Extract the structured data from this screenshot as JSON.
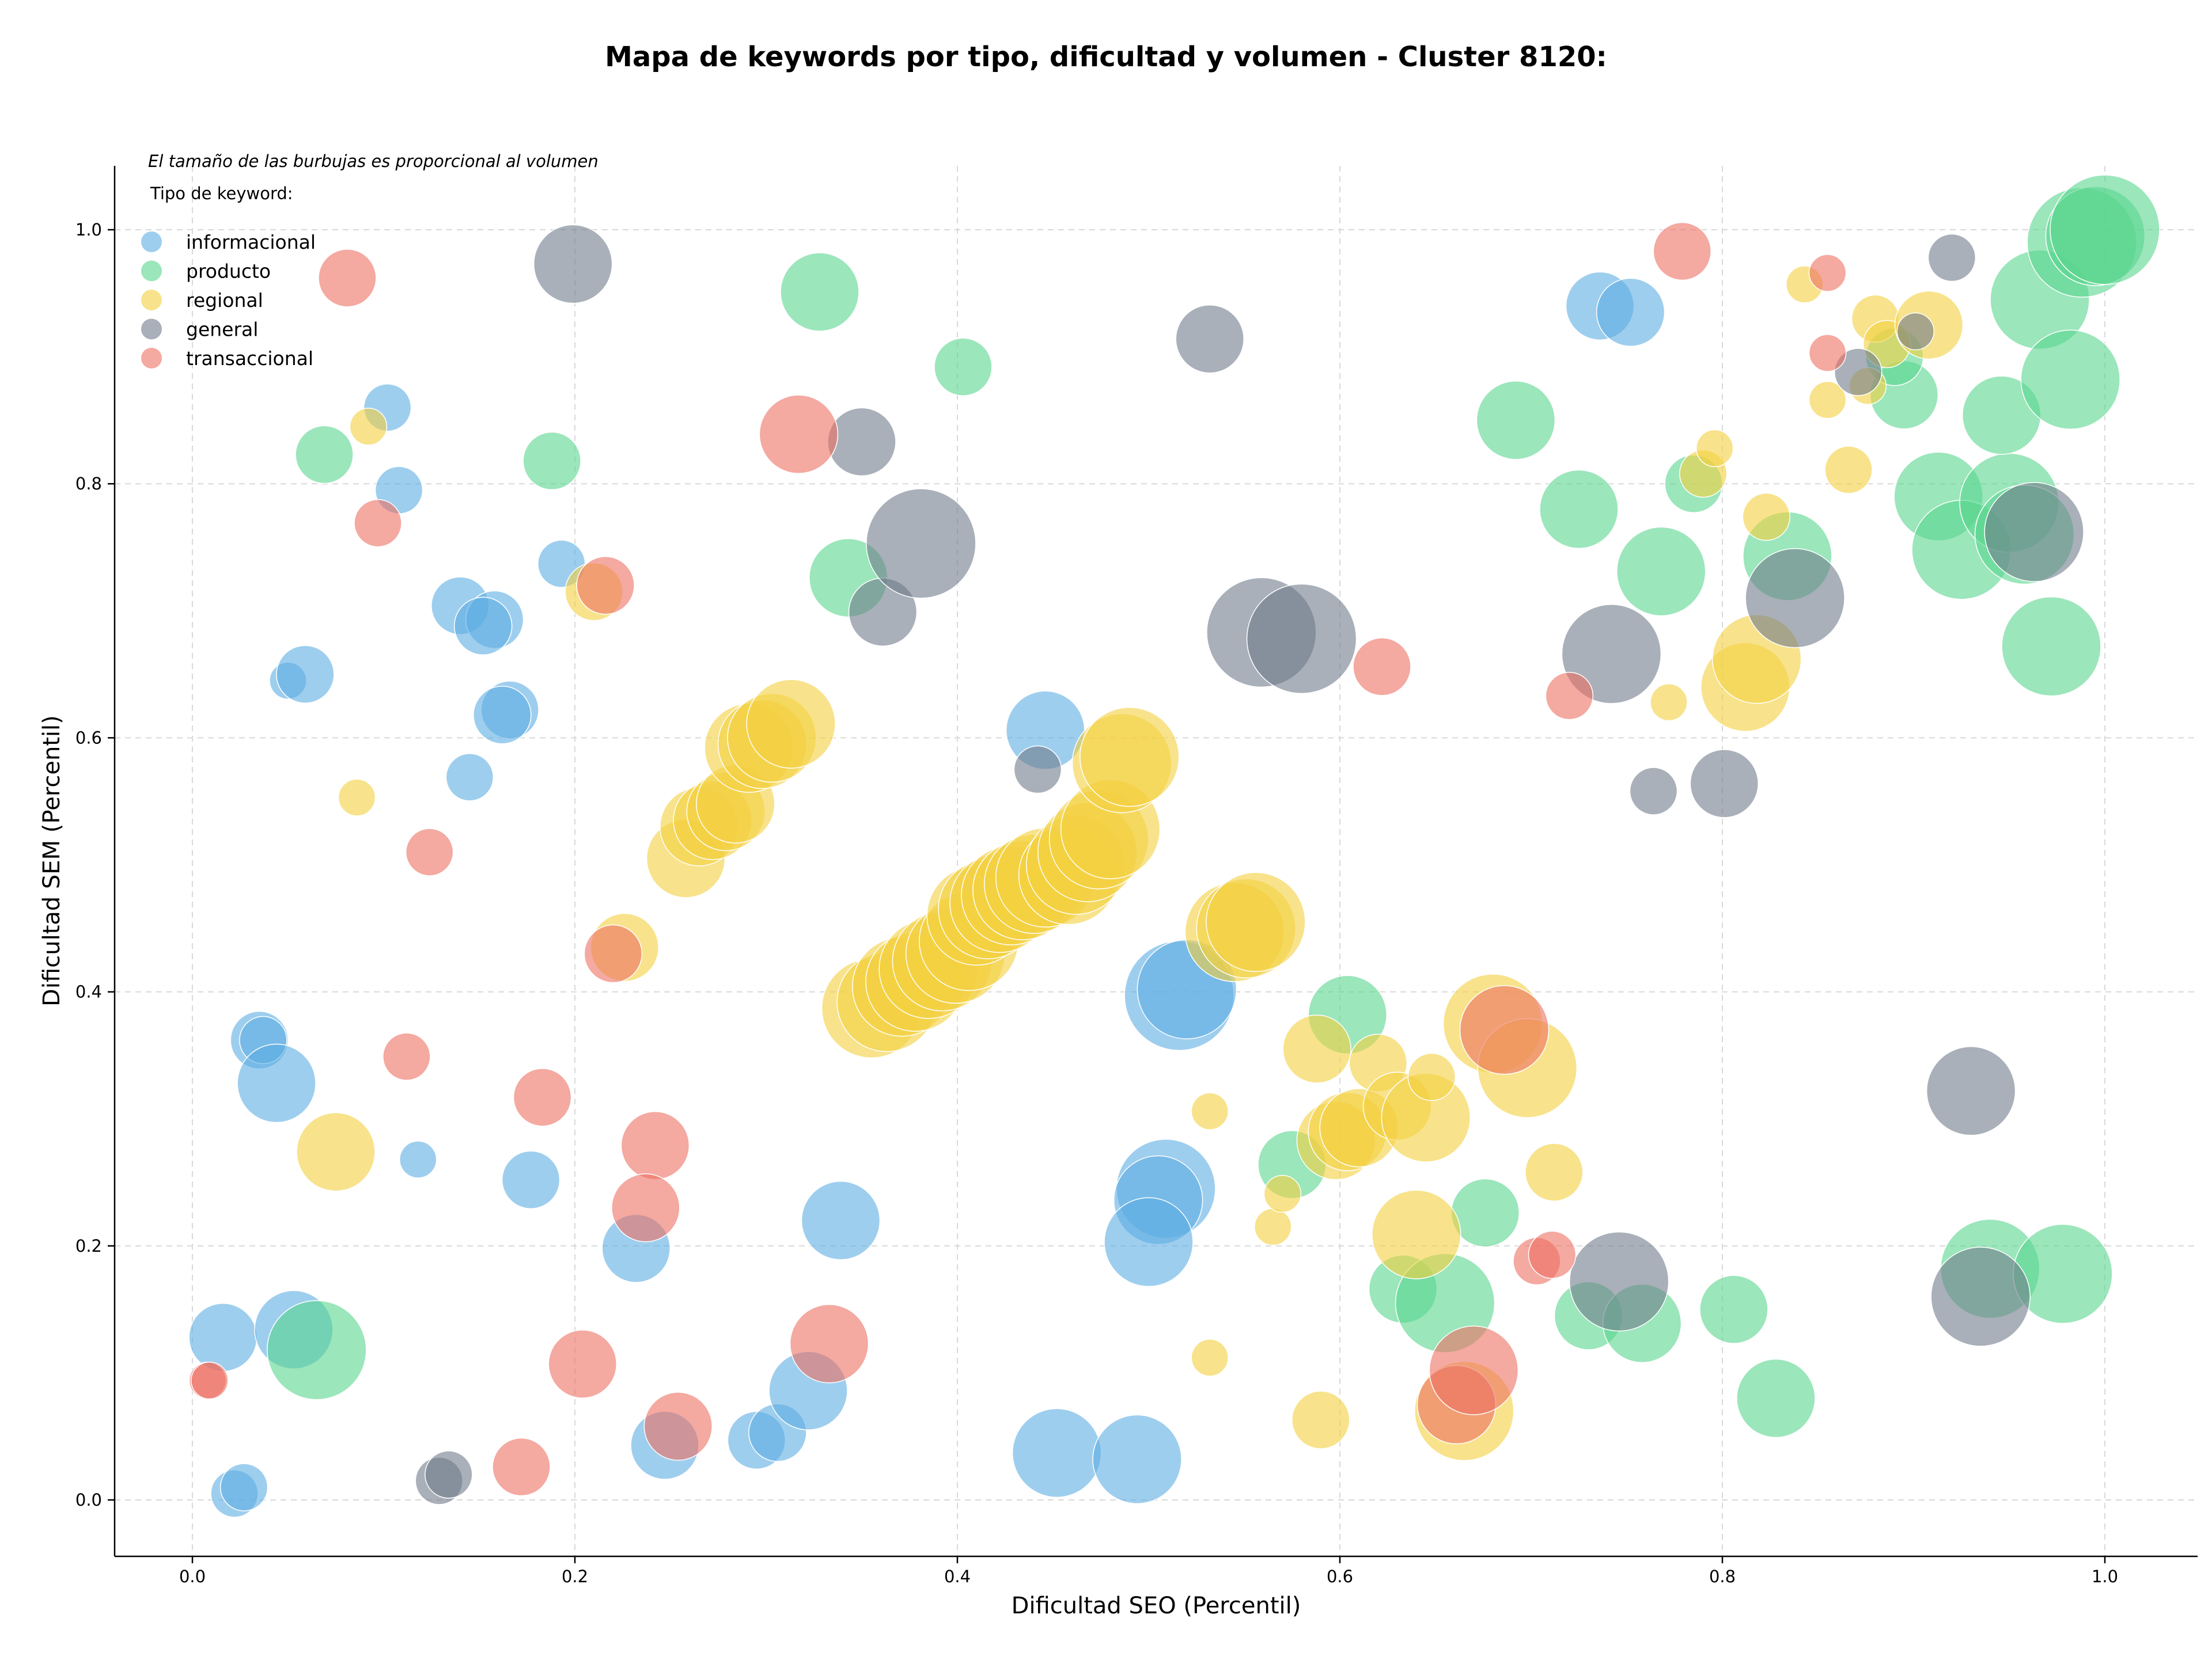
{
  "chart_data": {
    "type": "scatter",
    "title": "Mapa de keywords por tipo, dificultad y volumen - Cluster 8120:",
    "xlabel": "Dificultad SEO (Percentil)",
    "ylabel": "Dificultad SEM (Percentil)",
    "xlim": [
      -0.04,
      1.05
    ],
    "ylim": [
      -0.045,
      1.05
    ],
    "xticks": [
      "0.0",
      "0.2",
      "0.4",
      "0.6",
      "0.8",
      "1.0"
    ],
    "yticks": [
      "0.0",
      "0.2",
      "0.4",
      "0.6",
      "0.8",
      "1.0"
    ],
    "grid": true,
    "note": "El tamaño de las burbujas es proporcional al volumen",
    "legend": {
      "title": "Tipo de keyword:",
      "placement": "top-left",
      "entries": [
        "informacional",
        "producto",
        "regional",
        "general",
        "transaccional"
      ]
    },
    "series": [
      {
        "name": "informacional",
        "color": "#5DADE2",
        "points": [
          [
            0.102,
            0.86,
            3
          ],
          [
            0.108,
            0.795,
            3
          ],
          [
            0.193,
            0.737,
            3
          ],
          [
            0.14,
            0.704,
            4
          ],
          [
            0.158,
            0.693,
            4
          ],
          [
            0.152,
            0.688,
            4
          ],
          [
            0.05,
            0.645,
            2
          ],
          [
            0.059,
            0.65,
            4
          ],
          [
            0.166,
            0.622,
            4
          ],
          [
            0.162,
            0.618,
            4
          ],
          [
            0.145,
            0.569,
            3
          ],
          [
            0.446,
            0.606,
            6
          ],
          [
            0.736,
            0.94,
            5
          ],
          [
            0.752,
            0.935,
            5
          ],
          [
            0.035,
            0.362,
            4
          ],
          [
            0.037,
            0.362,
            3
          ],
          [
            0.044,
            0.328,
            6
          ],
          [
            0.118,
            0.268,
            2
          ],
          [
            0.177,
            0.252,
            4
          ],
          [
            0.232,
            0.198,
            5
          ],
          [
            0.339,
            0.22,
            6
          ],
          [
            0.516,
            0.397,
            9
          ],
          [
            0.52,
            0.402,
            8
          ],
          [
            0.509,
            0.245,
            8
          ],
          [
            0.505,
            0.236,
            7
          ],
          [
            0.5,
            0.203,
            7
          ],
          [
            0.016,
            0.128,
            5
          ],
          [
            0.053,
            0.134,
            6
          ],
          [
            0.022,
            0.005,
            3
          ],
          [
            0.027,
            0.01,
            3
          ],
          [
            0.247,
            0.043,
            5
          ],
          [
            0.295,
            0.047,
            4
          ],
          [
            0.306,
            0.053,
            4
          ],
          [
            0.322,
            0.086,
            6
          ],
          [
            0.452,
            0.037,
            7
          ],
          [
            0.494,
            0.032,
            7
          ]
        ]
      },
      {
        "name": "producto",
        "color": "#58D68D",
        "points": [
          [
            0.069,
            0.823,
            4
          ],
          [
            0.188,
            0.818,
            4
          ],
          [
            0.328,
            0.951,
            6
          ],
          [
            0.403,
            0.892,
            4
          ],
          [
            0.343,
            0.726,
            6
          ],
          [
            0.692,
            0.85,
            6
          ],
          [
            0.725,
            0.78,
            6
          ],
          [
            0.768,
            0.731,
            7
          ],
          [
            0.785,
            0.8,
            4
          ],
          [
            0.834,
            0.743,
            7
          ],
          [
            0.895,
            0.87,
            5
          ],
          [
            0.89,
            0.9,
            4
          ],
          [
            0.913,
            0.79,
            7
          ],
          [
            0.925,
            0.748,
            8
          ],
          [
            0.95,
            0.785,
            8
          ],
          [
            0.958,
            0.76,
            8
          ],
          [
            0.946,
            0.854,
            6
          ],
          [
            0.966,
            0.945,
            8
          ],
          [
            0.982,
            0.882,
            8
          ],
          [
            0.972,
            0.672,
            8
          ],
          [
            0.988,
            0.99,
            9
          ],
          [
            0.995,
            0.995,
            8
          ],
          [
            1.0,
            1.0,
            9
          ],
          [
            0.604,
            0.382,
            6
          ],
          [
            0.575,
            0.264,
            5
          ],
          [
            0.676,
            0.226,
            5
          ],
          [
            0.633,
            0.166,
            5
          ],
          [
            0.655,
            0.155,
            8
          ],
          [
            0.73,
            0.145,
            5
          ],
          [
            0.758,
            0.139,
            6
          ],
          [
            0.806,
            0.15,
            5
          ],
          [
            0.828,
            0.08,
            6
          ],
          [
            0.94,
            0.182,
            8
          ],
          [
            0.978,
            0.178,
            8
          ],
          [
            0.065,
            0.118,
            8
          ]
        ]
      },
      {
        "name": "regional",
        "color": "#F4D03F",
        "points": [
          [
            0.092,
            0.845,
            2
          ],
          [
            0.086,
            0.553,
            2
          ],
          [
            0.21,
            0.715,
            4
          ],
          [
            0.226,
            0.435,
            5
          ],
          [
            0.075,
            0.274,
            6
          ],
          [
            0.258,
            0.505,
            6
          ],
          [
            0.265,
            0.53,
            6
          ],
          [
            0.272,
            0.535,
            6
          ],
          [
            0.279,
            0.542,
            6
          ],
          [
            0.284,
            0.548,
            6
          ],
          [
            0.291,
            0.592,
            7
          ],
          [
            0.298,
            0.595,
            7
          ],
          [
            0.303,
            0.6,
            7
          ],
          [
            0.313,
            0.611,
            7
          ],
          [
            0.355,
            0.387,
            8
          ],
          [
            0.363,
            0.392,
            8
          ],
          [
            0.371,
            0.404,
            8
          ],
          [
            0.378,
            0.408,
            8
          ],
          [
            0.385,
            0.418,
            8
          ],
          [
            0.392,
            0.424,
            8
          ],
          [
            0.399,
            0.43,
            8
          ],
          [
            0.406,
            0.44,
            8
          ],
          [
            0.41,
            0.46,
            8
          ],
          [
            0.416,
            0.465,
            8
          ],
          [
            0.422,
            0.47,
            8
          ],
          [
            0.428,
            0.476,
            8
          ],
          [
            0.434,
            0.48,
            8
          ],
          [
            0.44,
            0.485,
            8
          ],
          [
            0.446,
            0.49,
            8
          ],
          [
            0.458,
            0.492,
            8
          ],
          [
            0.462,
            0.5,
            8
          ],
          [
            0.468,
            0.51,
            8
          ],
          [
            0.474,
            0.52,
            8
          ],
          [
            0.48,
            0.528,
            8
          ],
          [
            0.486,
            0.58,
            8
          ],
          [
            0.49,
            0.585,
            8
          ],
          [
            0.545,
            0.447,
            8
          ],
          [
            0.551,
            0.45,
            8
          ],
          [
            0.556,
            0.455,
            8
          ],
          [
            0.532,
            0.306,
            2
          ],
          [
            0.532,
            0.112,
            2
          ],
          [
            0.565,
            0.215,
            2
          ],
          [
            0.57,
            0.241,
            2
          ],
          [
            0.588,
            0.355,
            5
          ],
          [
            0.59,
            0.063,
            4
          ],
          [
            0.598,
            0.283,
            6
          ],
          [
            0.604,
            0.29,
            6
          ],
          [
            0.61,
            0.293,
            6
          ],
          [
            0.62,
            0.344,
            4
          ],
          [
            0.63,
            0.31,
            5
          ],
          [
            0.645,
            0.301,
            7
          ],
          [
            0.64,
            0.209,
            7
          ],
          [
            0.648,
            0.333,
            3
          ],
          [
            0.665,
            0.07,
            8
          ],
          [
            0.68,
            0.375,
            8
          ],
          [
            0.698,
            0.34,
            8
          ],
          [
            0.712,
            0.258,
            4
          ],
          [
            0.772,
            0.628,
            2
          ],
          [
            0.79,
            0.808,
            3
          ],
          [
            0.796,
            0.828,
            2
          ],
          [
            0.812,
            0.64,
            7
          ],
          [
            0.818,
            0.662,
            7
          ],
          [
            0.823,
            0.774,
            3
          ],
          [
            0.843,
            0.957,
            2
          ],
          [
            0.855,
            0.866,
            2
          ],
          [
            0.866,
            0.811,
            3
          ],
          [
            0.876,
            0.877,
            2
          ],
          [
            0.88,
            0.93,
            3
          ],
          [
            0.886,
            0.91,
            3
          ],
          [
            0.908,
            0.925,
            5
          ]
        ]
      },
      {
        "name": "general",
        "color": "#707B8B",
        "points": [
          [
            0.199,
            0.973,
            6
          ],
          [
            0.35,
            0.833,
            5
          ],
          [
            0.361,
            0.699,
            5
          ],
          [
            0.381,
            0.753,
            9
          ],
          [
            0.442,
            0.575,
            3
          ],
          [
            0.532,
            0.914,
            5
          ],
          [
            0.559,
            0.683,
            9
          ],
          [
            0.58,
            0.678,
            9
          ],
          [
            0.742,
            0.666,
            8
          ],
          [
            0.764,
            0.558,
            3
          ],
          [
            0.801,
            0.564,
            5
          ],
          [
            0.838,
            0.71,
            8
          ],
          [
            0.871,
            0.888,
            3
          ],
          [
            0.901,
            0.92,
            2
          ],
          [
            0.92,
            0.978,
            3
          ],
          [
            0.963,
            0.762,
            8
          ],
          [
            0.93,
            0.322,
            7
          ],
          [
            0.935,
            0.16,
            8
          ],
          [
            0.746,
            0.172,
            8
          ],
          [
            0.129,
            0.015,
            3
          ],
          [
            0.134,
            0.02,
            3
          ]
        ]
      },
      {
        "name": "transaccional",
        "color": "#EC7063",
        "points": [
          [
            0.081,
            0.962,
            4
          ],
          [
            0.097,
            0.769,
            3
          ],
          [
            0.124,
            0.51,
            3
          ],
          [
            0.216,
            0.72,
            4
          ],
          [
            0.22,
            0.43,
            4
          ],
          [
            0.317,
            0.839,
            6
          ],
          [
            0.112,
            0.349,
            3
          ],
          [
            0.183,
            0.317,
            4
          ],
          [
            0.242,
            0.279,
            5
          ],
          [
            0.237,
            0.23,
            5
          ],
          [
            0.333,
            0.123,
            6
          ],
          [
            0.204,
            0.107,
            5
          ],
          [
            0.254,
            0.058,
            5
          ],
          [
            0.172,
            0.026,
            4
          ],
          [
            0.008,
            0.094,
            2
          ],
          [
            0.009,
            0.094,
            2
          ],
          [
            0.622,
            0.656,
            4
          ],
          [
            0.72,
            0.633,
            3
          ],
          [
            0.779,
            0.983,
            4
          ],
          [
            0.855,
            0.966,
            2
          ],
          [
            0.855,
            0.903,
            2
          ],
          [
            0.686,
            0.37,
            7
          ],
          [
            0.703,
            0.188,
            3
          ],
          [
            0.711,
            0.193,
            3
          ],
          [
            0.661,
            0.075,
            6
          ],
          [
            0.67,
            0.102,
            7
          ]
        ]
      }
    ]
  }
}
